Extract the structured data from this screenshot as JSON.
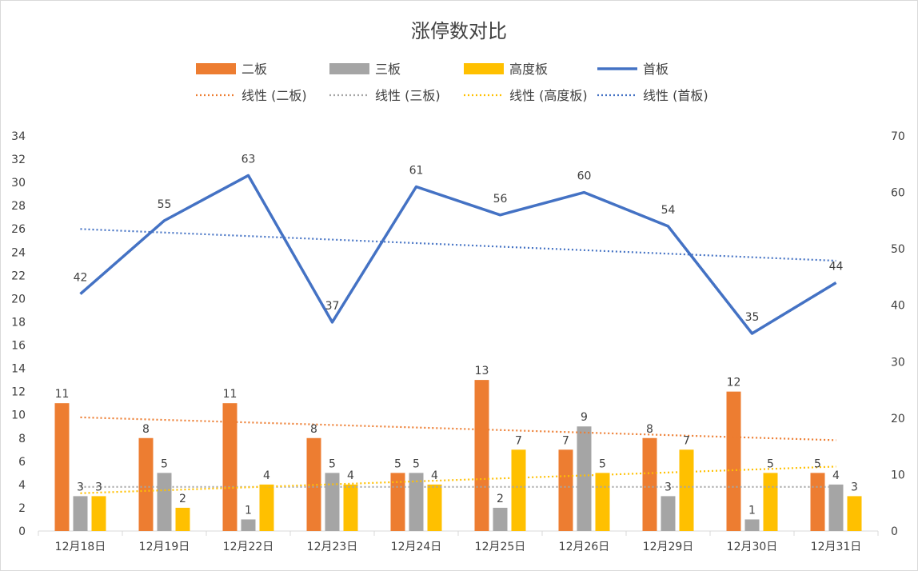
{
  "chart_data": {
    "type": "bar",
    "title": "涨停数对比",
    "categories": [
      "12月18日",
      "12月19日",
      "12月22日",
      "12月23日",
      "12月24日",
      "12月25日",
      "12月26日",
      "12月29日",
      "12月30日",
      "12月31日"
    ],
    "series": [
      {
        "name": "二板",
        "type": "bar",
        "axis": "left",
        "color": "#ED7D31",
        "values": [
          11,
          8,
          11,
          8,
          5,
          13,
          7,
          8,
          12,
          5
        ]
      },
      {
        "name": "三板",
        "type": "bar",
        "axis": "left",
        "color": "#A5A5A5",
        "values": [
          3,
          5,
          1,
          5,
          5,
          2,
          9,
          3,
          1,
          4
        ]
      },
      {
        "name": "高度板",
        "type": "bar",
        "axis": "left",
        "color": "#FFC000",
        "values": [
          3,
          2,
          4,
          4,
          4,
          7,
          5,
          7,
          5,
          3
        ]
      },
      {
        "name": "首板",
        "type": "line",
        "axis": "right",
        "color": "#4472C4",
        "values": [
          42,
          55,
          63,
          37,
          61,
          56,
          60,
          54,
          35,
          44
        ]
      }
    ],
    "trendlines": [
      {
        "name": "线性 (二板)",
        "series": "二板",
        "color": "#ED7D31"
      },
      {
        "name": "线性 (三板)",
        "series": "三板",
        "color": "#A5A5A5"
      },
      {
        "name": "线性 (高度板)",
        "series": "高度板",
        "color": "#FFC000"
      },
      {
        "name": "线性 (首板)",
        "series": "首板",
        "color": "#4472C4"
      }
    ],
    "left_axis": {
      "min": 0,
      "max": 34,
      "step": 2
    },
    "right_axis": {
      "min": 0,
      "max": 70,
      "step": 10
    },
    "legend_placement": "top",
    "grid": false,
    "data_labels": true
  }
}
